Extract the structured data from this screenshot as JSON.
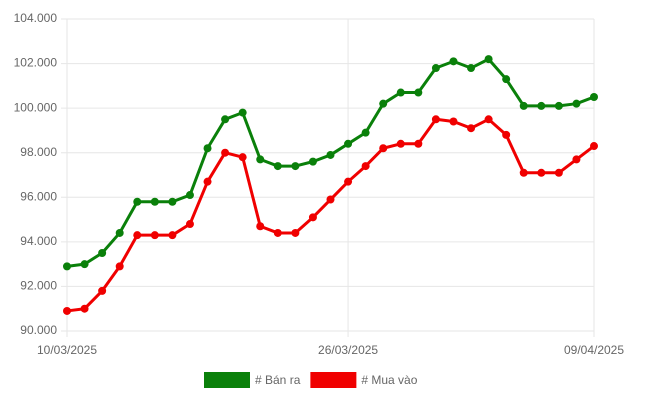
{
  "chart_data": {
    "type": "line",
    "categories": [
      "10/03/2025",
      null,
      null,
      null,
      null,
      null,
      null,
      null,
      null,
      null,
      null,
      null,
      null,
      null,
      null,
      null,
      "26/03/2025",
      null,
      null,
      null,
      null,
      null,
      null,
      null,
      null,
      null,
      null,
      null,
      null,
      null,
      "09/04/2025"
    ],
    "series": [
      {
        "name": "# Bán ra",
        "color": "#0a800a",
        "values": [
          92900,
          93000,
          93500,
          94400,
          95800,
          95800,
          95800,
          96100,
          98200,
          99500,
          99800,
          97700,
          97400,
          97400,
          97600,
          97900,
          98400,
          98900,
          100200,
          100700,
          100700,
          101800,
          102100,
          101800,
          102200,
          101300,
          100100,
          100100,
          100100,
          100200,
          100500
        ]
      },
      {
        "name": "# Mua vào",
        "color": "#f00000",
        "values": [
          90900,
          91000,
          91800,
          92900,
          94300,
          94300,
          94300,
          94800,
          96700,
          98000,
          97800,
          94700,
          94400,
          94400,
          95100,
          95900,
          96700,
          97400,
          98200,
          98400,
          98400,
          99500,
          99400,
          99100,
          99500,
          98800,
          97100,
          97100,
          97100,
          97700,
          98300
        ]
      }
    ],
    "ylim": [
      90000,
      104000
    ],
    "yticks": [
      {
        "value": 90000,
        "label": "90.000"
      },
      {
        "value": 92000,
        "label": "92.000"
      },
      {
        "value": 94000,
        "label": "94.000"
      },
      {
        "value": 96000,
        "label": "96.000"
      },
      {
        "value": 98000,
        "label": "98.000"
      },
      {
        "value": 100000,
        "label": "100.000"
      },
      {
        "value": 102000,
        "label": "102.000"
      },
      {
        "value": 104000,
        "label": "104.000"
      }
    ],
    "grid": true,
    "legend": "bottom"
  }
}
